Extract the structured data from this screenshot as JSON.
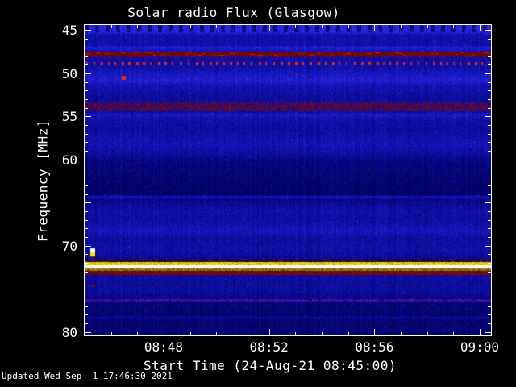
{
  "page": {
    "background": "#000000",
    "foreground": "#ffffff"
  },
  "footer": {
    "updated": "Updated Wed Sep  1 17:46:30 2021"
  },
  "chart_data": {
    "type": "heatmap",
    "subtype": "solar-radio-spectrogram",
    "title": "Solar radio Flux (Glasgow)",
    "xlabel": "Start Time (24-Aug-21 08:45:00)",
    "ylabel": "Frequency [MHz]",
    "grid": false,
    "x_axis": {
      "start_time": "08:45:00",
      "date": "24-Aug-21",
      "range_minutes": [
        0,
        15.43
      ],
      "major_ticks": [
        {
          "minutes": 3,
          "label": "08:48"
        },
        {
          "minutes": 7,
          "label": "08:52"
        },
        {
          "minutes": 11,
          "label": "08:56"
        },
        {
          "minutes": 15,
          "label": "09:00"
        }
      ],
      "minor_step_minutes": 1
    },
    "y_axis": {
      "range_mhz": [
        44.4,
        80.4
      ],
      "direction": "increasing-downward",
      "major_ticks": [
        {
          "mhz": 45,
          "label": "45"
        },
        {
          "mhz": 50,
          "label": "50"
        },
        {
          "mhz": 55,
          "label": "55"
        },
        {
          "mhz": 60,
          "label": "60"
        },
        {
          "mhz": 65,
          "label": ""
        },
        {
          "mhz": 70,
          "label": "70"
        },
        {
          "mhz": 75,
          "label": ""
        },
        {
          "mhz": 80,
          "label": "80"
        }
      ],
      "minor_step_mhz": 1
    },
    "colormap": {
      "base_blue_bright": "#2424ee",
      "base_blue_medium": "#0a0aa5",
      "base_blue_dark": "#000060",
      "rfi_red": "#c02008",
      "band_dark_red": "#780808",
      "maroon": "#641018",
      "emission_yellow": "#f0c814",
      "emission_white": "#fffbe0",
      "faint_purple": "#5020a0"
    },
    "background_profile_mhz_intensity": [
      [
        44.4,
        0.85
      ],
      [
        45.2,
        0.8
      ],
      [
        45.6,
        0.55
      ],
      [
        46.8,
        0.55
      ],
      [
        47.0,
        0.78
      ],
      [
        47.4,
        0.6
      ],
      [
        48.4,
        0.52
      ],
      [
        49.4,
        0.55
      ],
      [
        50.4,
        0.7
      ],
      [
        50.9,
        0.74
      ],
      [
        51.4,
        0.6
      ],
      [
        52.7,
        0.5
      ],
      [
        54.5,
        0.5
      ],
      [
        54.8,
        0.68
      ],
      [
        55.3,
        0.55
      ],
      [
        56.4,
        0.5
      ],
      [
        58.3,
        0.6
      ],
      [
        59.4,
        0.5
      ],
      [
        60.2,
        0.36
      ],
      [
        61.6,
        0.3
      ],
      [
        63.0,
        0.26
      ],
      [
        64.1,
        0.26
      ],
      [
        64.3,
        0.62
      ],
      [
        64.6,
        0.4
      ],
      [
        66.0,
        0.55
      ],
      [
        66.9,
        0.5
      ],
      [
        68.3,
        0.64
      ],
      [
        69.2,
        0.5
      ],
      [
        70.4,
        0.55
      ],
      [
        71.6,
        0.45
      ],
      [
        73.7,
        0.5
      ],
      [
        75.1,
        0.5
      ],
      [
        76.0,
        0.42
      ],
      [
        76.6,
        0.3
      ],
      [
        78.1,
        0.28
      ],
      [
        78.3,
        0.45
      ],
      [
        78.7,
        0.28
      ],
      [
        80.4,
        0.3
      ]
    ],
    "features": [
      {
        "name": "top-stripe-pattern",
        "mhz": [
          44.4,
          45.2
        ],
        "time_minutes": [
          0,
          15.43
        ],
        "style": "striped-bright"
      },
      {
        "name": "rfi-band-upper",
        "mhz": [
          47.5,
          48.1
        ],
        "time_minutes": [
          0,
          15.43
        ],
        "style": "dark-red-with-bright-dashes"
      },
      {
        "name": "rfi-dotted-carrier",
        "mhz": [
          48.6,
          49.1
        ],
        "time_minutes": [
          0,
          15.43
        ],
        "style": "periodic-red-dots"
      },
      {
        "name": "transient-dot",
        "mhz": [
          50.3,
          50.8
        ],
        "time_minutes": [
          1.42,
          1.55
        ],
        "style": "red-dot"
      },
      {
        "name": "rfi-band-lower",
        "mhz": [
          53.4,
          54.4
        ],
        "time_minutes": [
          0,
          15.43
        ],
        "style": "maroon-blue-mottle"
      },
      {
        "name": "blip-white-yellow",
        "mhz": [
          70.3,
          71.3
        ],
        "time_minutes": [
          0.2,
          0.4
        ],
        "style": "white-yellow-blip"
      },
      {
        "name": "speckle-row",
        "mhz": [
          71.5,
          71.9
        ],
        "time_minutes": [
          0,
          15.43
        ],
        "style": "dark-speckle-red"
      },
      {
        "name": "emission-line-yellow",
        "mhz": [
          71.9,
          72.3
        ],
        "time_minutes": [
          0,
          15.43
        ],
        "style": "yellow"
      },
      {
        "name": "emission-line-core",
        "mhz": [
          72.3,
          72.6
        ],
        "time_minutes": [
          0,
          15.43
        ],
        "style": "white"
      },
      {
        "name": "emission-line-edge",
        "mhz": [
          72.6,
          72.9
        ],
        "time_minutes": [
          0,
          15.43
        ],
        "style": "olive-speckle"
      },
      {
        "name": "emission-band-lower",
        "mhz": [
          72.9,
          73.35
        ],
        "time_minutes": [
          0,
          15.43
        ],
        "style": "dark-red"
      },
      {
        "name": "transient-dot-low",
        "mhz": [
          74.5,
          74.8
        ],
        "time_minutes": [
          0.25,
          0.37
        ],
        "style": "dark-red-dot"
      },
      {
        "name": "faint-purple-line",
        "mhz": [
          76.2,
          76.45
        ],
        "time_minutes": [
          0,
          15.43
        ],
        "style": "purple-line"
      }
    ]
  }
}
